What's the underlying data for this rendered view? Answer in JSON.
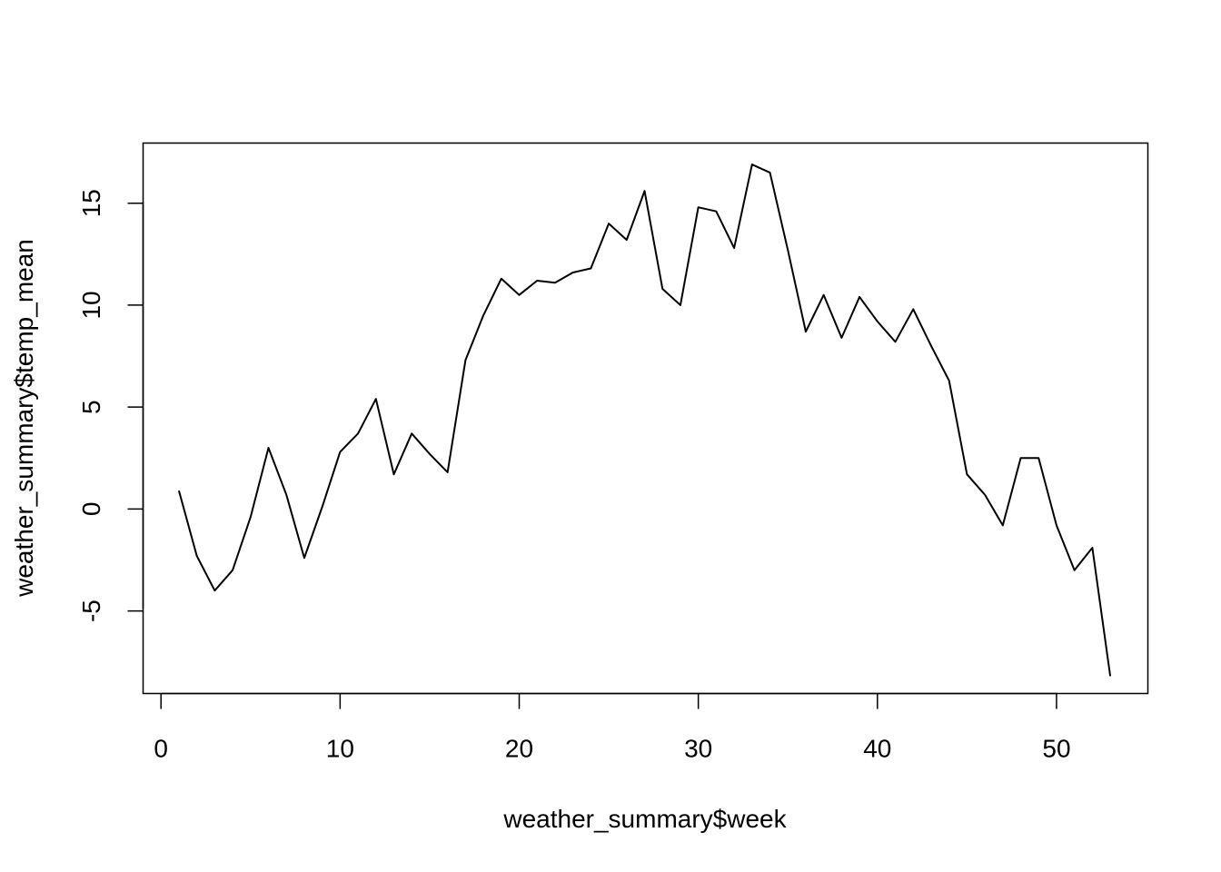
{
  "chart_data": {
    "type": "line",
    "xlabel": "weather_summary$week",
    "ylabel": "weather_summary$temp_mean",
    "xlim": [
      -1,
      55.1
    ],
    "ylim": [
      -9.05,
      17.95
    ],
    "x_ticks": [
      0,
      10,
      20,
      30,
      40,
      50
    ],
    "x_tick_labels": [
      "0",
      "10",
      "20",
      "30",
      "40",
      "50"
    ],
    "y_ticks": [
      -5,
      0,
      5,
      10,
      15
    ],
    "y_tick_labels": [
      "-5",
      "0",
      "5",
      "10",
      "15"
    ],
    "grid": false,
    "line_color": "#000000",
    "series": [
      {
        "x": [
          1,
          2,
          3,
          4,
          5,
          6,
          7,
          8,
          9,
          10,
          11,
          12,
          13,
          14,
          15,
          16,
          17,
          18,
          19,
          20,
          21,
          22,
          23,
          24,
          25,
          26,
          27,
          28,
          29,
          30,
          31,
          32,
          33,
          34,
          35,
          36,
          37,
          38,
          39,
          40,
          41,
          42,
          43,
          44,
          45,
          46,
          47,
          48,
          49,
          50,
          51,
          52,
          53
        ],
        "values": [
          0.9,
          -2.3,
          -4.0,
          -3.0,
          -0.4,
          3.0,
          0.7,
          -2.4,
          0.1,
          2.8,
          3.7,
          5.4,
          1.7,
          3.7,
          2.7,
          1.8,
          7.3,
          9.5,
          11.3,
          10.5,
          11.2,
          11.1,
          11.6,
          11.8,
          14.0,
          13.2,
          15.6,
          10.8,
          10.0,
          14.8,
          14.6,
          12.8,
          16.9,
          16.5,
          12.7,
          8.7,
          10.5,
          8.4,
          10.4,
          9.2,
          8.2,
          9.8,
          8.0,
          6.3,
          1.7,
          0.7,
          -0.8,
          2.5,
          2.5,
          -0.8,
          -3.0,
          -1.9,
          -8.2
        ]
      }
    ]
  }
}
